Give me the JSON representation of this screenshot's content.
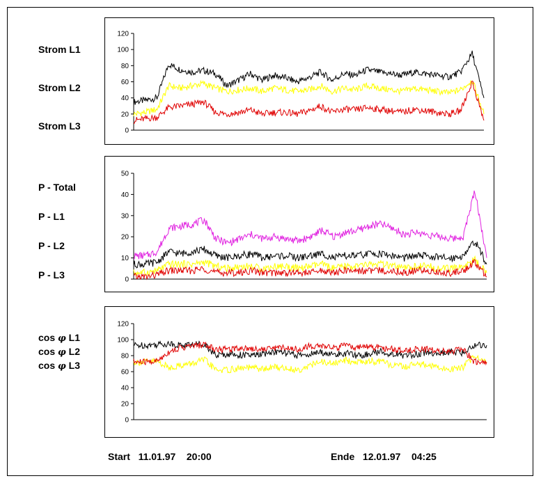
{
  "legends": {
    "strom": [
      "Strom L1",
      "Strom L2",
      "Strom L3"
    ],
    "power": [
      "P - Total",
      "P - L1",
      "P - L2",
      "P - L3"
    ],
    "cos": [
      {
        "prefix": "cos",
        "symbol": "φ",
        "suffix": "L1"
      },
      {
        "prefix": "cos",
        "symbol": "φ",
        "suffix": "L2"
      },
      {
        "prefix": "cos",
        "symbol": "φ",
        "suffix": "L3"
      }
    ]
  },
  "footer": {
    "start_label": "Start",
    "start_date": "11.01.97",
    "start_time": "20:00",
    "end_label": "Ende",
    "end_date": "12.01.97",
    "end_time": "04:25"
  },
  "colors": {
    "black": "#000000",
    "yellow": "#ffff00",
    "red": "#e00000",
    "magenta": "#e020e0"
  },
  "chart_data": [
    {
      "type": "line",
      "ylim": [
        0,
        120
      ],
      "yticks": [
        0,
        20,
        40,
        60,
        80,
        100,
        120
      ],
      "grid": false,
      "x": [
        0,
        1,
        2,
        3,
        4,
        5,
        6,
        7,
        8,
        9,
        10,
        11,
        12,
        13,
        14,
        15,
        16,
        17,
        18,
        19,
        20,
        21,
        22,
        23,
        24,
        25,
        26,
        27,
        28,
        29,
        30
      ],
      "series": [
        {
          "color": "#000000",
          "values": [
            35,
            37,
            40,
            82,
            75,
            72,
            74,
            70,
            55,
            62,
            70,
            62,
            68,
            65,
            60,
            65,
            72,
            62,
            70,
            68,
            75,
            72,
            70,
            68,
            72,
            70,
            68,
            66,
            72,
            95,
            40
          ]
        },
        {
          "color": "#ffff00",
          "values": [
            20,
            22,
            26,
            55,
            52,
            55,
            58,
            52,
            48,
            50,
            52,
            48,
            52,
            50,
            48,
            50,
            55,
            48,
            52,
            50,
            55,
            52,
            50,
            48,
            52,
            50,
            48,
            46,
            50,
            62,
            20
          ]
        },
        {
          "color": "#e00000",
          "values": [
            12,
            14,
            16,
            28,
            30,
            32,
            35,
            22,
            20,
            22,
            25,
            20,
            22,
            22,
            20,
            24,
            30,
            22,
            26,
            25,
            28,
            26,
            24,
            22,
            26,
            24,
            22,
            20,
            24,
            60,
            12
          ]
        }
      ]
    },
    {
      "type": "line",
      "ylim": [
        0,
        50
      ],
      "yticks": [
        0,
        10,
        20,
        30,
        40,
        50
      ],
      "grid": false,
      "x": [
        0,
        1,
        2,
        3,
        4,
        5,
        6,
        7,
        8,
        9,
        10,
        11,
        12,
        13,
        14,
        15,
        16,
        17,
        18,
        19,
        20,
        21,
        22,
        23,
        24,
        25,
        26,
        27,
        28,
        29,
        30
      ],
      "series": [
        {
          "color": "#e020e0",
          "values": [
            11,
            11,
            13,
            24,
            25,
            26,
            28,
            19,
            17,
            19,
            21,
            19,
            20,
            19,
            18,
            20,
            23,
            20,
            22,
            23,
            25,
            26,
            24,
            21,
            22,
            21,
            20,
            19,
            20,
            42,
            10
          ]
        },
        {
          "color": "#000000",
          "values": [
            7,
            7,
            8,
            13,
            12,
            13,
            14,
            11,
            10,
            11,
            12,
            10,
            11,
            11,
            10,
            11,
            12,
            10,
            11,
            11,
            12,
            12,
            11,
            10,
            11,
            11,
            10,
            10,
            11,
            18,
            7
          ]
        },
        {
          "color": "#ffff00",
          "values": [
            3,
            3,
            4,
            7,
            7,
            7,
            8,
            6,
            5,
            6,
            6,
            5,
            6,
            6,
            5,
            6,
            7,
            5,
            6,
            6,
            7,
            7,
            6,
            5,
            6,
            6,
            5,
            5,
            6,
            9,
            3
          ]
        },
        {
          "color": "#e00000",
          "values": [
            1,
            1,
            2,
            4,
            4,
            4,
            5,
            3,
            3,
            3,
            4,
            3,
            3,
            3,
            3,
            3,
            4,
            3,
            4,
            4,
            4,
            4,
            4,
            3,
            4,
            4,
            3,
            3,
            4,
            8,
            1
          ]
        }
      ]
    },
    {
      "type": "line",
      "ylim": [
        0,
        120
      ],
      "yticks": [
        0,
        20,
        40,
        60,
        80,
        100,
        120
      ],
      "grid": false,
      "x": [
        0,
        1,
        2,
        3,
        4,
        5,
        6,
        7,
        8,
        9,
        10,
        11,
        12,
        13,
        14,
        15,
        16,
        17,
        18,
        19,
        20,
        21,
        22,
        23,
        24,
        25,
        26,
        27,
        28,
        29,
        30
      ],
      "series": [
        {
          "color": "#000000",
          "values": [
            93,
            93,
            94,
            95,
            93,
            94,
            95,
            80,
            82,
            81,
            80,
            82,
            85,
            83,
            80,
            82,
            84,
            81,
            83,
            80,
            82,
            85,
            82,
            80,
            82,
            84,
            82,
            85,
            83,
            94,
            93
          ]
        },
        {
          "color": "#ffff00",
          "values": [
            72,
            72,
            73,
            65,
            68,
            70,
            75,
            62,
            62,
            64,
            65,
            63,
            66,
            64,
            62,
            68,
            72,
            70,
            74,
            72,
            73,
            72,
            68,
            66,
            70,
            68,
            64,
            63,
            66,
            80,
            72
          ]
        },
        {
          "color": "#e00000",
          "values": [
            72,
            72,
            73,
            85,
            90,
            92,
            94,
            88,
            88,
            90,
            89,
            88,
            90,
            90,
            88,
            92,
            92,
            90,
            92,
            90,
            91,
            90,
            88,
            86,
            88,
            88,
            86,
            85,
            88,
            72,
            72
          ]
        }
      ]
    }
  ]
}
